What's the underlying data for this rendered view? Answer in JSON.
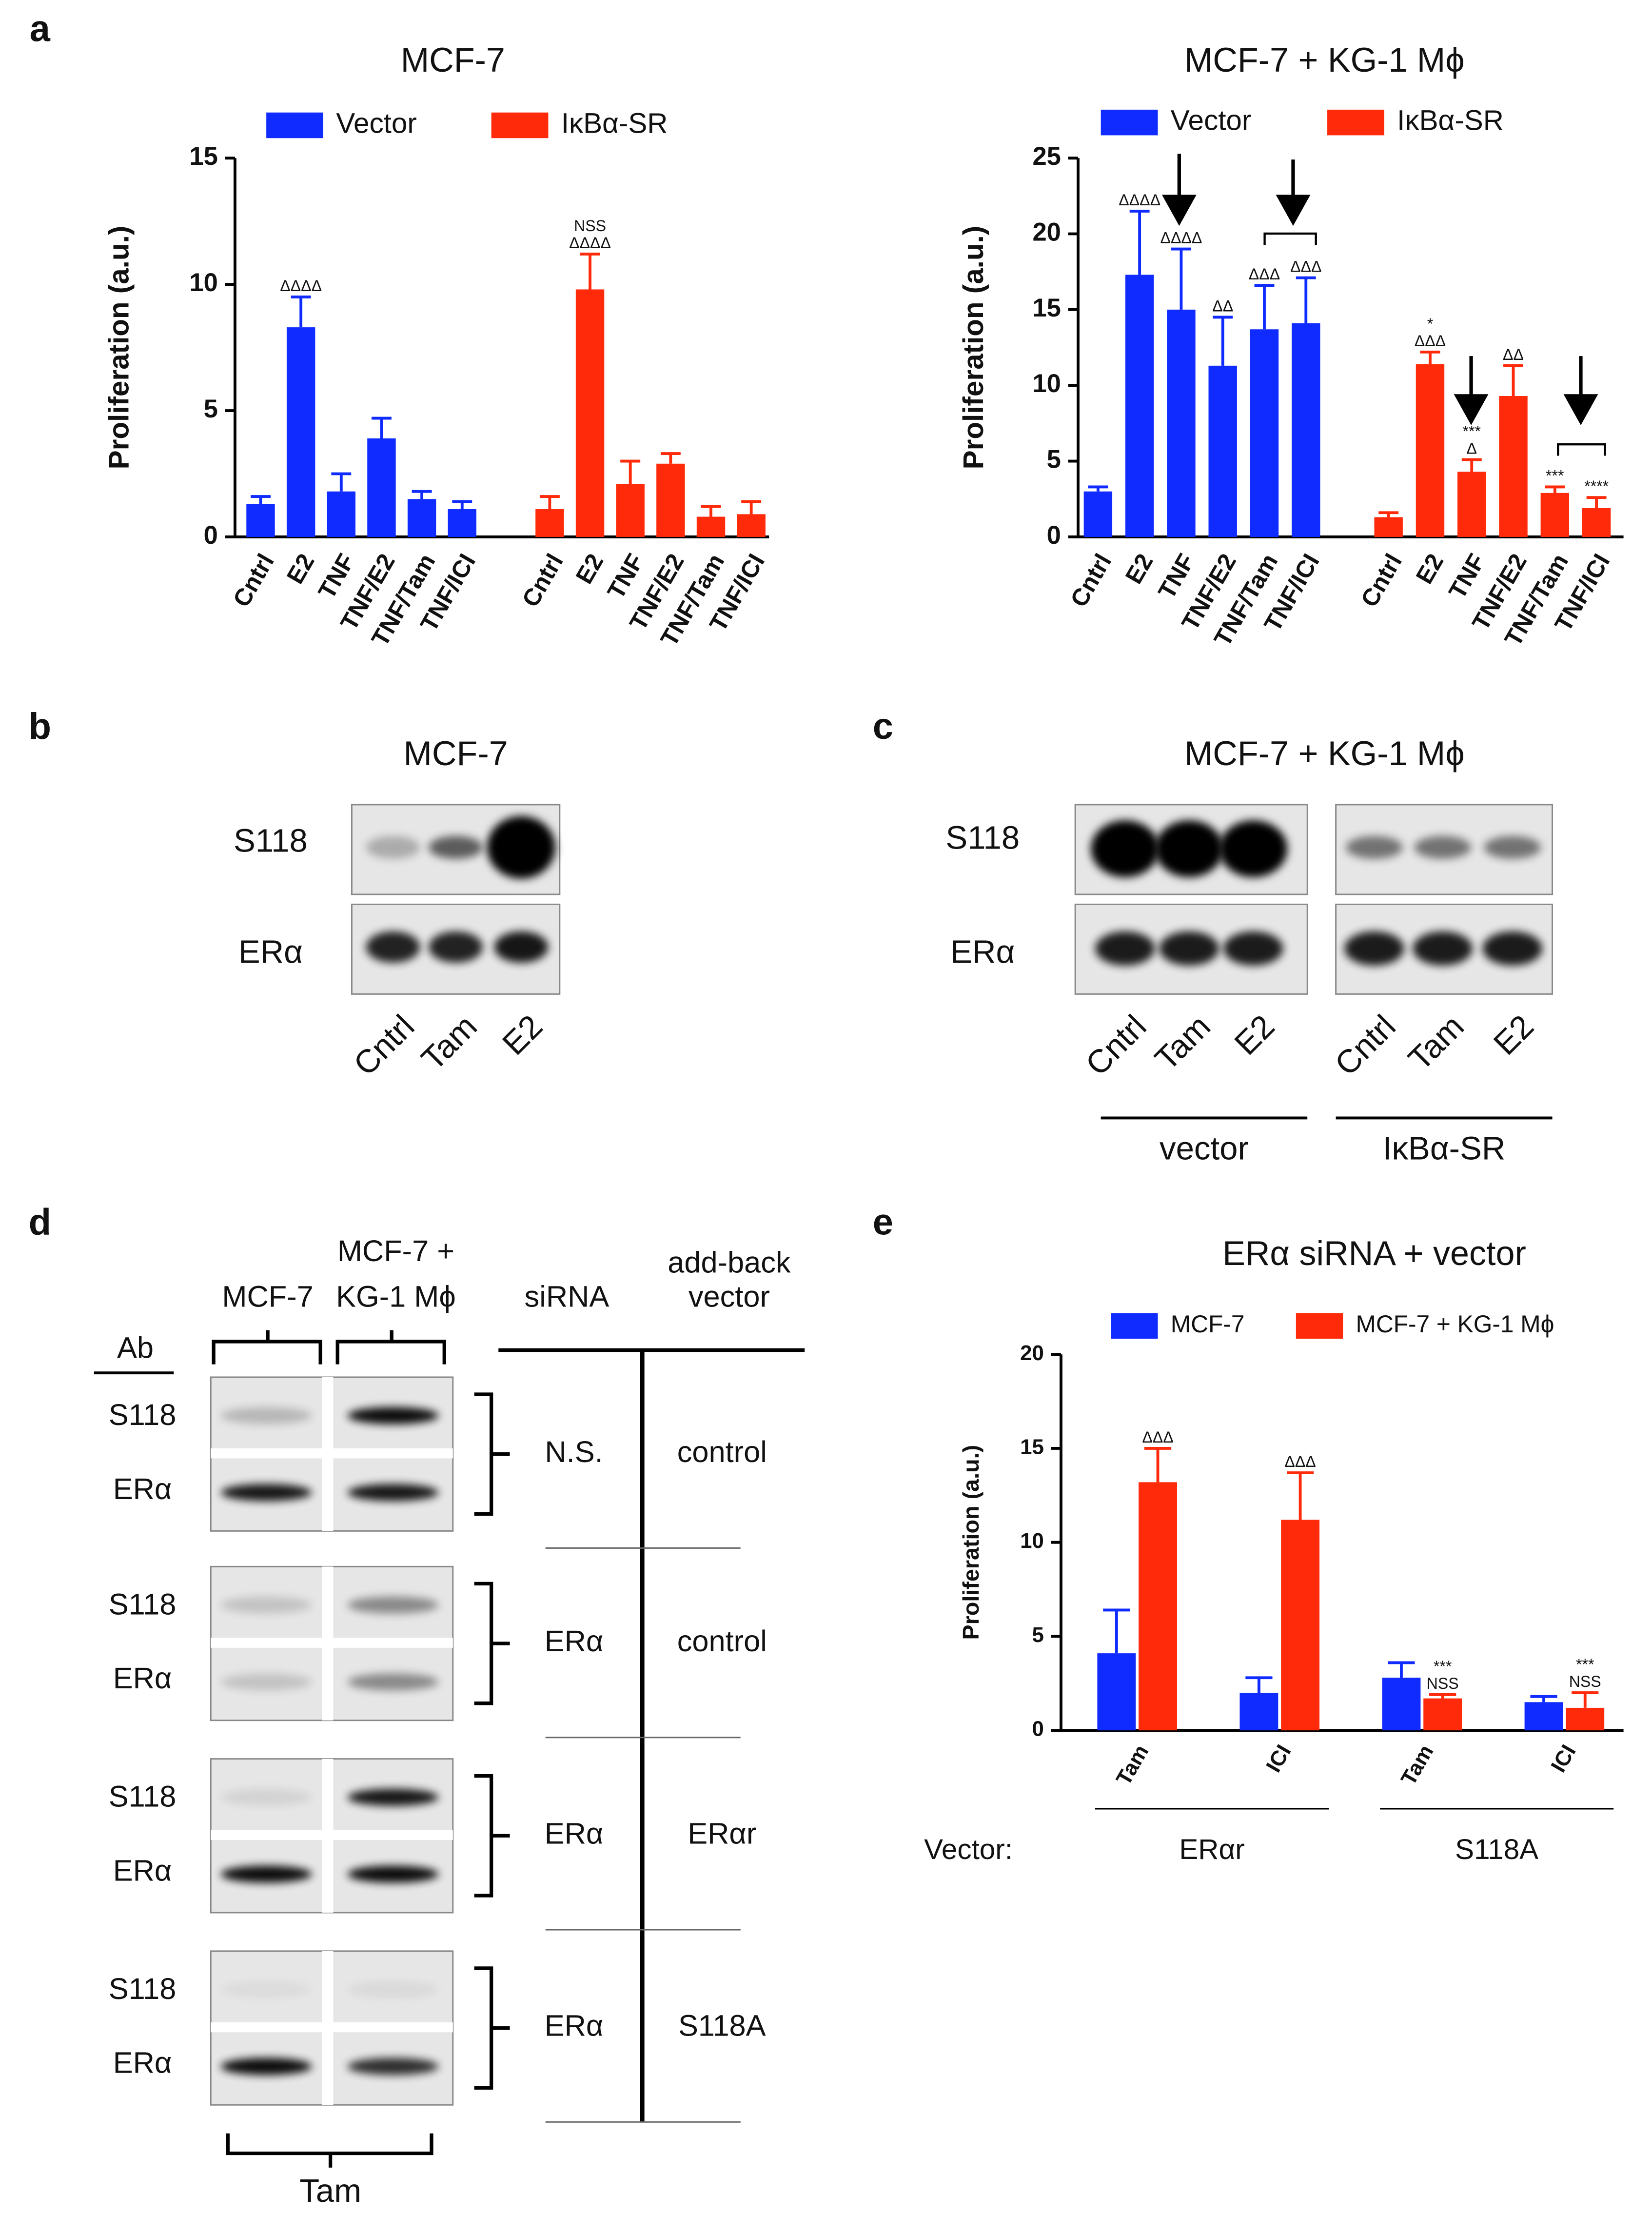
{
  "panel_labels": [
    "a",
    "b",
    "c",
    "d",
    "e"
  ],
  "chart_data": [
    {
      "type": "bar",
      "title": "MCF-7",
      "y_label": "Proliferation (a.u.)",
      "arrangement": "series-blocks",
      "categories": [
        "Cntrl",
        "E2",
        "TNF",
        "TNF/E2",
        "TNF/Tam",
        "TNF/ICI"
      ],
      "ylim": [
        0,
        15
      ],
      "yticks": [
        0,
        5,
        10,
        15
      ],
      "series": [
        {
          "name": "Vector",
          "color": "#0f2bff",
          "values": [
            1.3,
            8.3,
            1.8,
            3.9,
            1.5,
            1.1
          ],
          "errors": [
            0.3,
            1.2,
            0.7,
            0.8,
            0.3,
            0.3
          ],
          "annotations": [
            null,
            [
              "ΔΔΔΔ"
            ],
            null,
            null,
            null,
            null
          ]
        },
        {
          "name": "IκBα-SR",
          "color": "#ff2a0a",
          "values": [
            1.1,
            9.8,
            2.1,
            2.9,
            0.8,
            0.9
          ],
          "errors": [
            0.5,
            1.4,
            0.9,
            0.4,
            0.4,
            0.5
          ],
          "annotations": [
            null,
            [
              "NSS",
              "ΔΔΔΔ"
            ],
            null,
            null,
            null,
            null
          ]
        }
      ]
    },
    {
      "type": "bar",
      "title": "MCF-7 + KG-1 Mϕ",
      "y_label": "Proliferation (a.u.)",
      "arrangement": "series-blocks",
      "categories": [
        "Cntrl",
        "E2",
        "TNF",
        "TNF/E2",
        "TNF/Tam",
        "TNF/ICI"
      ],
      "ylim": [
        0,
        25
      ],
      "yticks": [
        0,
        5,
        10,
        15,
        20,
        25
      ],
      "series": [
        {
          "name": "Vector",
          "color": "#0f2bff",
          "values": [
            3.0,
            17.3,
            15.0,
            11.3,
            13.7,
            14.1
          ],
          "errors": [
            0.3,
            4.2,
            4.0,
            3.2,
            2.9,
            3.0
          ],
          "annotations": [
            null,
            [
              "ΔΔΔΔ"
            ],
            [
              "ΔΔΔΔ"
            ],
            [
              "ΔΔ"
            ],
            [
              "ΔΔΔ"
            ],
            [
              "ΔΔΔ"
            ]
          ]
        },
        {
          "name": "IκBα-SR",
          "color": "#ff2a0a",
          "values": [
            1.3,
            11.4,
            4.3,
            9.3,
            2.9,
            1.9
          ],
          "errors": [
            0.3,
            0.8,
            0.8,
            2.0,
            0.4,
            0.7
          ],
          "annotations": [
            null,
            [
              "*",
              "ΔΔΔ"
            ],
            [
              "***",
              "Δ"
            ],
            [
              "ΔΔ"
            ],
            [
              "***"
            ],
            [
              "****"
            ]
          ]
        }
      ]
    },
    {
      "type": "bar",
      "title": "ERα siRNA + vector",
      "y_label": "Proliferation (a.u.)",
      "arrangement": "side-by-side",
      "categories": [
        "Tam",
        "ICI",
        "Tam",
        "ICI"
      ],
      "group_label": "Vector:",
      "groups": [
        "ERαr",
        "S118A"
      ],
      "ylim": [
        0,
        20
      ],
      "yticks": [
        0,
        5,
        10,
        15,
        20
      ],
      "series": [
        {
          "name": "MCF-7",
          "color": "#0f2bff",
          "values": [
            4.1,
            2.0,
            2.8,
            1.5
          ],
          "errors": [
            2.3,
            0.8,
            0.8,
            0.3
          ],
          "annotations": [
            null,
            null,
            null,
            null
          ]
        },
        {
          "name": "MCF-7 + KG-1 Mϕ",
          "color": "#ff2a0a",
          "values": [
            13.2,
            11.2,
            1.7,
            1.2
          ],
          "errors": [
            1.8,
            2.5,
            0.2,
            0.8
          ],
          "annotations": [
            [
              "ΔΔΔ"
            ],
            [
              "ΔΔΔ"
            ],
            [
              "***",
              "NSS"
            ],
            [
              "***",
              "NSS"
            ]
          ]
        }
      ]
    }
  ],
  "blot_b": {
    "title": "MCF-7",
    "rows": [
      "S118",
      "ERα"
    ],
    "lanes": [
      "Cntrl",
      "Tam",
      "E2"
    ]
  },
  "blot_c": {
    "title": "MCF-7 + KG-1 Mϕ",
    "rows": [
      "S118",
      "ERα"
    ],
    "lanes": [
      "Cntrl",
      "Tam",
      "E2"
    ],
    "groups": [
      "vector",
      "IκBα-SR"
    ]
  },
  "blot_d": {
    "ab": "Ab",
    "lane_groups": [
      [
        "MCF-7"
      ],
      [
        "MCF-7 +",
        "KG-1 Mϕ"
      ]
    ],
    "sirna_header": "siRNA",
    "vector_header": [
      "add-back",
      "vector"
    ],
    "treatment": "Tam",
    "rows": [
      {
        "bands": [
          "S118",
          "ERα"
        ],
        "sirna": "N.S.",
        "vector": "control"
      },
      {
        "bands": [
          "S118",
          "ERα"
        ],
        "sirna": "ERα",
        "vector": "control"
      },
      {
        "bands": [
          "S118",
          "ERα"
        ],
        "sirna": "ERα",
        "vector": "ERαr"
      },
      {
        "bands": [
          "S118",
          "ERα"
        ],
        "sirna": "ERα",
        "vector": "S118A"
      }
    ]
  }
}
